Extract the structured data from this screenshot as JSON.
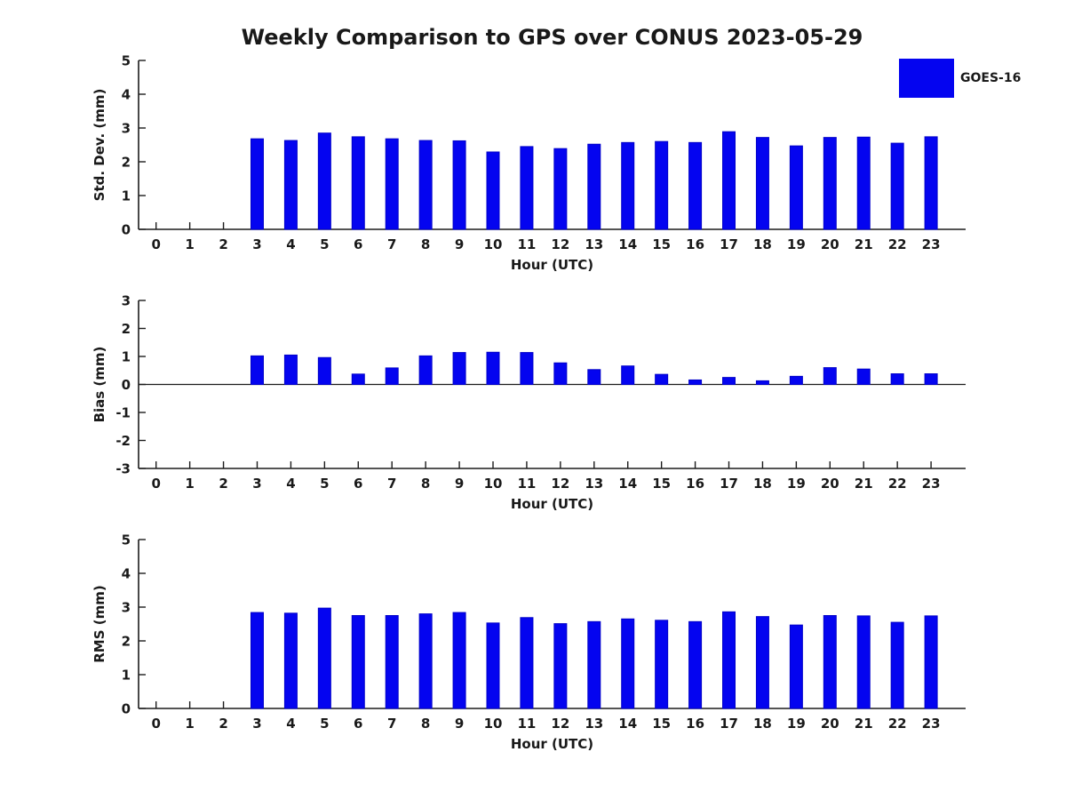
{
  "figure": {
    "title": "Weekly Comparison to GPS over CONUS 2023-05-29",
    "legend": {
      "label": "GOES-16"
    }
  },
  "colors": {
    "bar": "#0404f0",
    "bar_edge": "#0101c8",
    "axis": "#1c1c1c",
    "text": "#191919",
    "background": "#ffffff"
  },
  "chart_data": [
    {
      "type": "bar",
      "title": "Weekly Comparison to GPS over CONUS 2023-05-29",
      "categories": [
        "0",
        "1",
        "2",
        "3",
        "4",
        "5",
        "6",
        "7",
        "8",
        "9",
        "10",
        "11",
        "12",
        "13",
        "14",
        "15",
        "16",
        "17",
        "18",
        "19",
        "20",
        "21",
        "22",
        "23"
      ],
      "series": [
        {
          "name": "GOES-16",
          "values": [
            null,
            null,
            null,
            2.68,
            2.63,
            2.85,
            2.74,
            2.68,
            2.63,
            2.62,
            2.29,
            2.45,
            2.39,
            2.52,
            2.57,
            2.6,
            2.57,
            2.89,
            2.72,
            2.47,
            2.72,
            2.73,
            2.55,
            2.74
          ]
        }
      ],
      "xlabel": "Hour (UTC)",
      "ylabel": "Std. Dev. (mm)",
      "ylim": [
        0,
        5
      ],
      "yticks": [
        0,
        1,
        2,
        3,
        4,
        5
      ],
      "grid": false,
      "legend_entries": [
        "GOES-16"
      ],
      "legend_position": "upper-right-outside"
    },
    {
      "type": "bar",
      "title": "",
      "categories": [
        "0",
        "1",
        "2",
        "3",
        "4",
        "5",
        "6",
        "7",
        "8",
        "9",
        "10",
        "11",
        "12",
        "13",
        "14",
        "15",
        "16",
        "17",
        "18",
        "19",
        "20",
        "21",
        "22",
        "23"
      ],
      "series": [
        {
          "name": "GOES-16",
          "values": [
            null,
            null,
            null,
            1.02,
            1.05,
            0.96,
            0.37,
            0.59,
            1.02,
            1.14,
            1.15,
            1.14,
            0.77,
            0.53,
            0.66,
            0.36,
            0.16,
            0.25,
            0.13,
            0.29,
            0.6,
            0.55,
            0.38,
            0.38
          ]
        }
      ],
      "xlabel": "Hour (UTC)",
      "ylabel": "Bias (mm)",
      "ylim": [
        -3,
        3
      ],
      "yticks": [
        -3,
        -2,
        -1,
        0,
        1,
        2,
        3
      ],
      "zero_line": true,
      "grid": false
    },
    {
      "type": "bar",
      "title": "",
      "categories": [
        "0",
        "1",
        "2",
        "3",
        "4",
        "5",
        "6",
        "7",
        "8",
        "9",
        "10",
        "11",
        "12",
        "13",
        "14",
        "15",
        "16",
        "17",
        "18",
        "19",
        "20",
        "21",
        "22",
        "23"
      ],
      "series": [
        {
          "name": "GOES-16",
          "values": [
            null,
            null,
            null,
            2.84,
            2.82,
            2.97,
            2.75,
            2.75,
            2.8,
            2.84,
            2.53,
            2.69,
            2.51,
            2.57,
            2.65,
            2.61,
            2.57,
            2.86,
            2.72,
            2.47,
            2.75,
            2.74,
            2.55,
            2.74
          ]
        }
      ],
      "xlabel": "Hour (UTC)",
      "ylabel": "RMS (mm)",
      "ylim": [
        0,
        5
      ],
      "yticks": [
        0,
        1,
        2,
        3,
        4,
        5
      ],
      "grid": false
    }
  ]
}
